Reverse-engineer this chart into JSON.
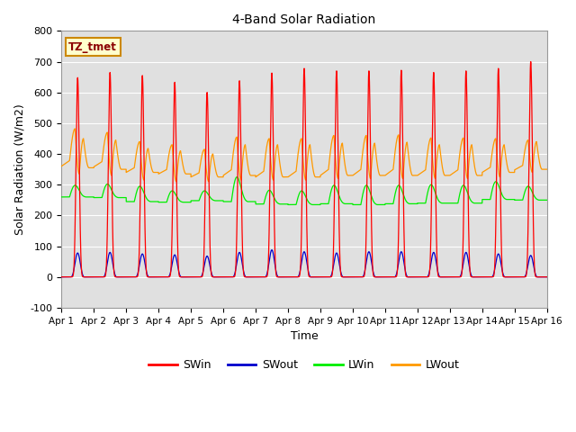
{
  "title": "4-Band Solar Radiation",
  "xlabel": "Time",
  "ylabel": "Solar Radiation (W/m2)",
  "ylim": [
    -100,
    800
  ],
  "annotation": "TZ_tmet",
  "legend": [
    "SWin",
    "SWout",
    "LWin",
    "LWout"
  ],
  "colors": {
    "SWin": "#ff0000",
    "SWout": "#0000cc",
    "LWin": "#00ee00",
    "LWout": "#ff9900"
  },
  "xtick_labels": [
    "Apr 1",
    "Apr 2",
    "Apr 3",
    "Apr 4",
    "Apr 5",
    "Apr 6",
    "Apr 7",
    "Apr 8",
    "Apr 9",
    "Apr 10",
    "Apr 11",
    "Apr 12",
    "Apr 13",
    "Apr 14",
    "Apr 15",
    "Apr 16"
  ],
  "background_color": "#e0e0e0",
  "grid_color": "#ffffff",
  "n_days": 15,
  "SWin_peaks": [
    648,
    665,
    655,
    633,
    600,
    638,
    663,
    678,
    670,
    670,
    672,
    665,
    670,
    678,
    700
  ],
  "SWout_peaks": [
    78,
    80,
    75,
    72,
    68,
    80,
    88,
    82,
    78,
    82,
    82,
    80,
    80,
    75,
    70
  ],
  "LWin_base": [
    260,
    258,
    245,
    243,
    248,
    245,
    237,
    235,
    238,
    235,
    238,
    240,
    240,
    252,
    250
  ],
  "LWin_peaks": [
    298,
    302,
    295,
    280,
    280,
    325,
    282,
    280,
    298,
    298,
    298,
    300,
    298,
    310,
    295
  ],
  "LWout_start": [
    360,
    358,
    340,
    335,
    325,
    330,
    325,
    325,
    330,
    330,
    330,
    330,
    330,
    340,
    348
  ],
  "LWout_morning_peak": [
    482,
    470,
    440,
    430,
    415,
    455,
    450,
    450,
    460,
    460,
    462,
    452,
    452,
    450,
    445
  ],
  "LWout_noon_dip": [
    335,
    330,
    315,
    310,
    310,
    315,
    315,
    315,
    320,
    320,
    320,
    320,
    320,
    325,
    340
  ],
  "LWout_afternoon_peak": [
    450,
    445,
    418,
    410,
    400,
    430,
    430,
    430,
    435,
    435,
    438,
    430,
    430,
    430,
    440
  ],
  "LWout_end": [
    355,
    350,
    340,
    335,
    325,
    330,
    325,
    325,
    330,
    330,
    330,
    330,
    330,
    340,
    350
  ]
}
